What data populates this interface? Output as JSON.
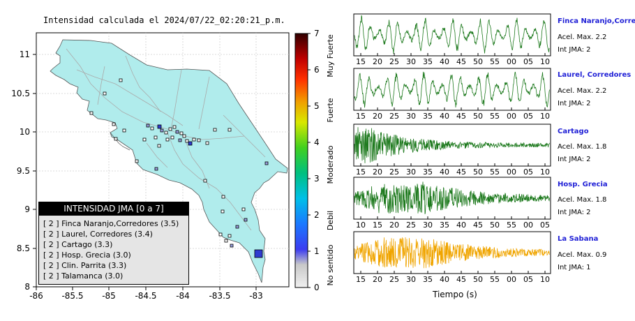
{
  "map": {
    "title": "Intensidad calculada el 2024/07/22_02:20:21_p.m.",
    "x_ticks": [
      "-86",
      "-85.5",
      "-85",
      "-84.5",
      "-84",
      "-83.5",
      "-83"
    ],
    "y_ticks": [
      "11",
      "10.5",
      "10",
      "9.5",
      "9",
      "8.5",
      "8"
    ],
    "land_color": "#b0ecec",
    "station_color": "#ffffff",
    "station_color_low": "#9aa0e0",
    "station_color_high": "#2f3cd0"
  },
  "colorbar": {
    "ticks": [
      "0",
      "1",
      "2",
      "3",
      "4",
      "5",
      "6",
      "7"
    ],
    "labels": [
      "No sentido",
      "Debil",
      "Moderado",
      "Fuerte",
      "Muy Fuerte"
    ]
  },
  "legend": {
    "title": "INTENSIDAD JMA [0 a 7]",
    "items": [
      "[ 2 ]  Finca Naranjo,Corredores (3.5)",
      "[ 2 ]  Laurel, Corredores (3.4)",
      "[ 2 ]  Cartago (3.3)",
      "[ 2 ]  Hosp. Grecia (3.0)",
      "[ 2 ]  Clin. Parrita (3.3)",
      "[ 2 ]  Talamanca (3.0)"
    ]
  },
  "waveforms": [
    {
      "name": "Finca Naranjo,Corredores",
      "acel": "Acel. Max. 2.2",
      "int": "Int JMA: 2",
      "color": "#1e7a1e",
      "ticks": [
        "15",
        "20",
        "25",
        "30",
        "35",
        "40",
        "45",
        "50",
        "55",
        "00",
        "05",
        "10"
      ],
      "style": "oscillating"
    },
    {
      "name": "Laurel, Corredores",
      "acel": "Acel. Max. 2.2",
      "int": "Int JMA: 2",
      "color": "#1e7a1e",
      "ticks": [
        "15",
        "20",
        "25",
        "30",
        "35",
        "40",
        "45",
        "50",
        "55",
        "00",
        "05",
        "10"
      ],
      "style": "oscillating"
    },
    {
      "name": "Cartago",
      "acel": "Acel. Max. 1.8",
      "int": "Int JMA: 2",
      "color": "#1e7a1e",
      "ticks": [
        "15",
        "20",
        "25",
        "30",
        "35",
        "40",
        "45",
        "50",
        "55",
        "00",
        "05",
        "10"
      ],
      "style": "decay-early"
    },
    {
      "name": "Hosp. Grecia",
      "acel": "Acel. Max. 1.8",
      "int": "Int JMA: 2",
      "color": "#1e7a1e",
      "ticks": [
        "10",
        "15",
        "20",
        "25",
        "30",
        "35",
        "40",
        "45",
        "50",
        "55",
        "00",
        "05"
      ],
      "style": "decay-mid"
    },
    {
      "name": "La Sabana",
      "acel": "Acel. Max. 0.9",
      "int": "Int JMA: 1",
      "color": "#f0a500",
      "ticks": [
        "15",
        "20",
        "25",
        "30",
        "35",
        "40",
        "45",
        "50",
        "55",
        "00",
        "05",
        "10"
      ],
      "style": "decay-mid"
    }
  ],
  "xaxis_label": "Tiempo (s)"
}
